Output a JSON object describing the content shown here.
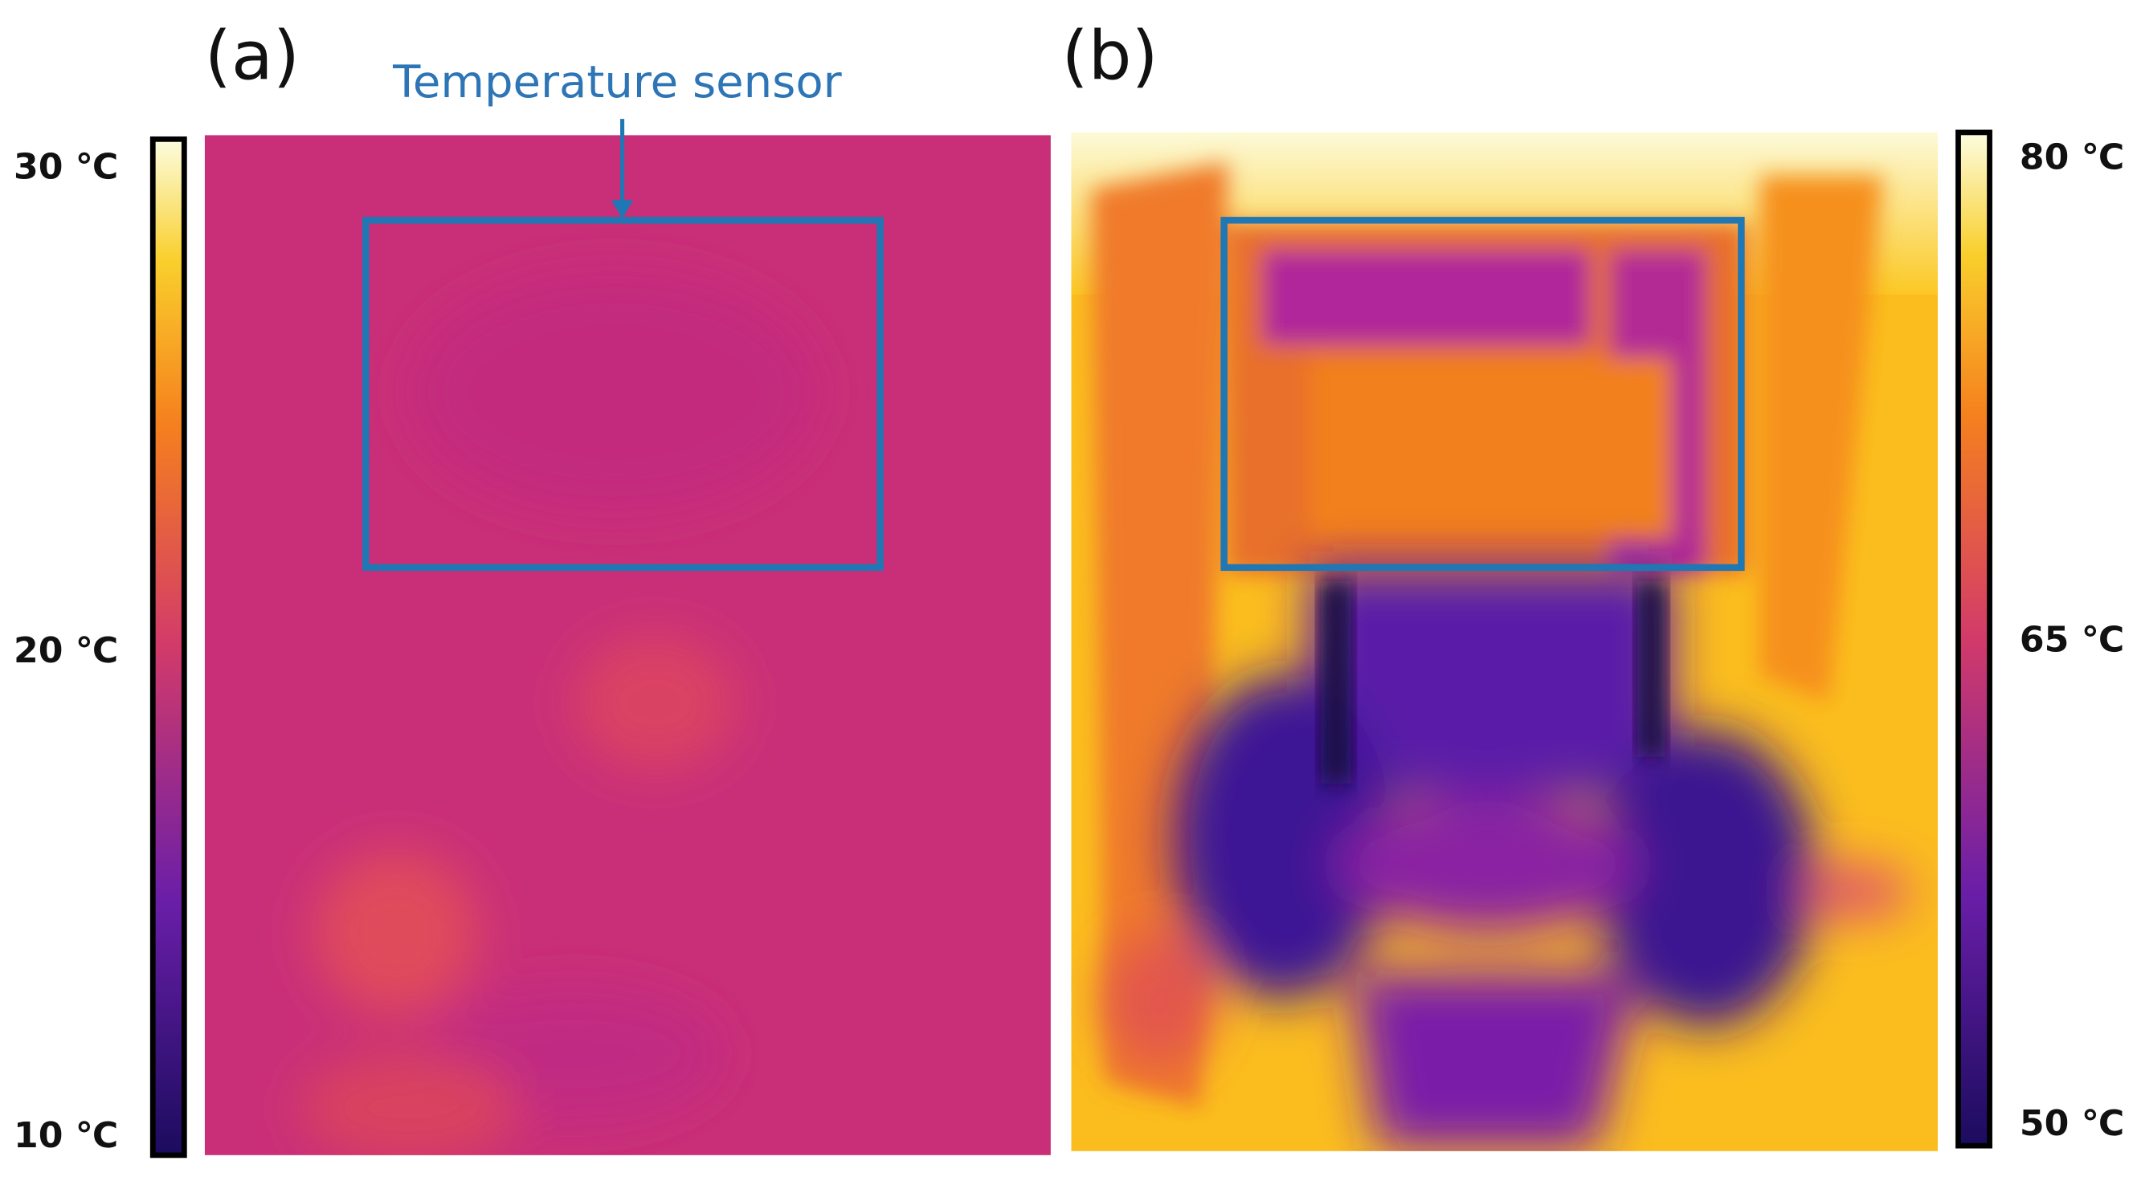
{
  "panels": [
    {
      "label": "(a)",
      "colorbar": {
        "labels": [
          "30 ℃",
          "20 ℃",
          "10 ℃"
        ]
      }
    },
    {
      "label": "(b)",
      "colorbar": {
        "labels": [
          "80 ℃",
          "65 ℃",
          "50 ℃"
        ]
      }
    }
  ],
  "annotation": "Temperature sensor"
}
